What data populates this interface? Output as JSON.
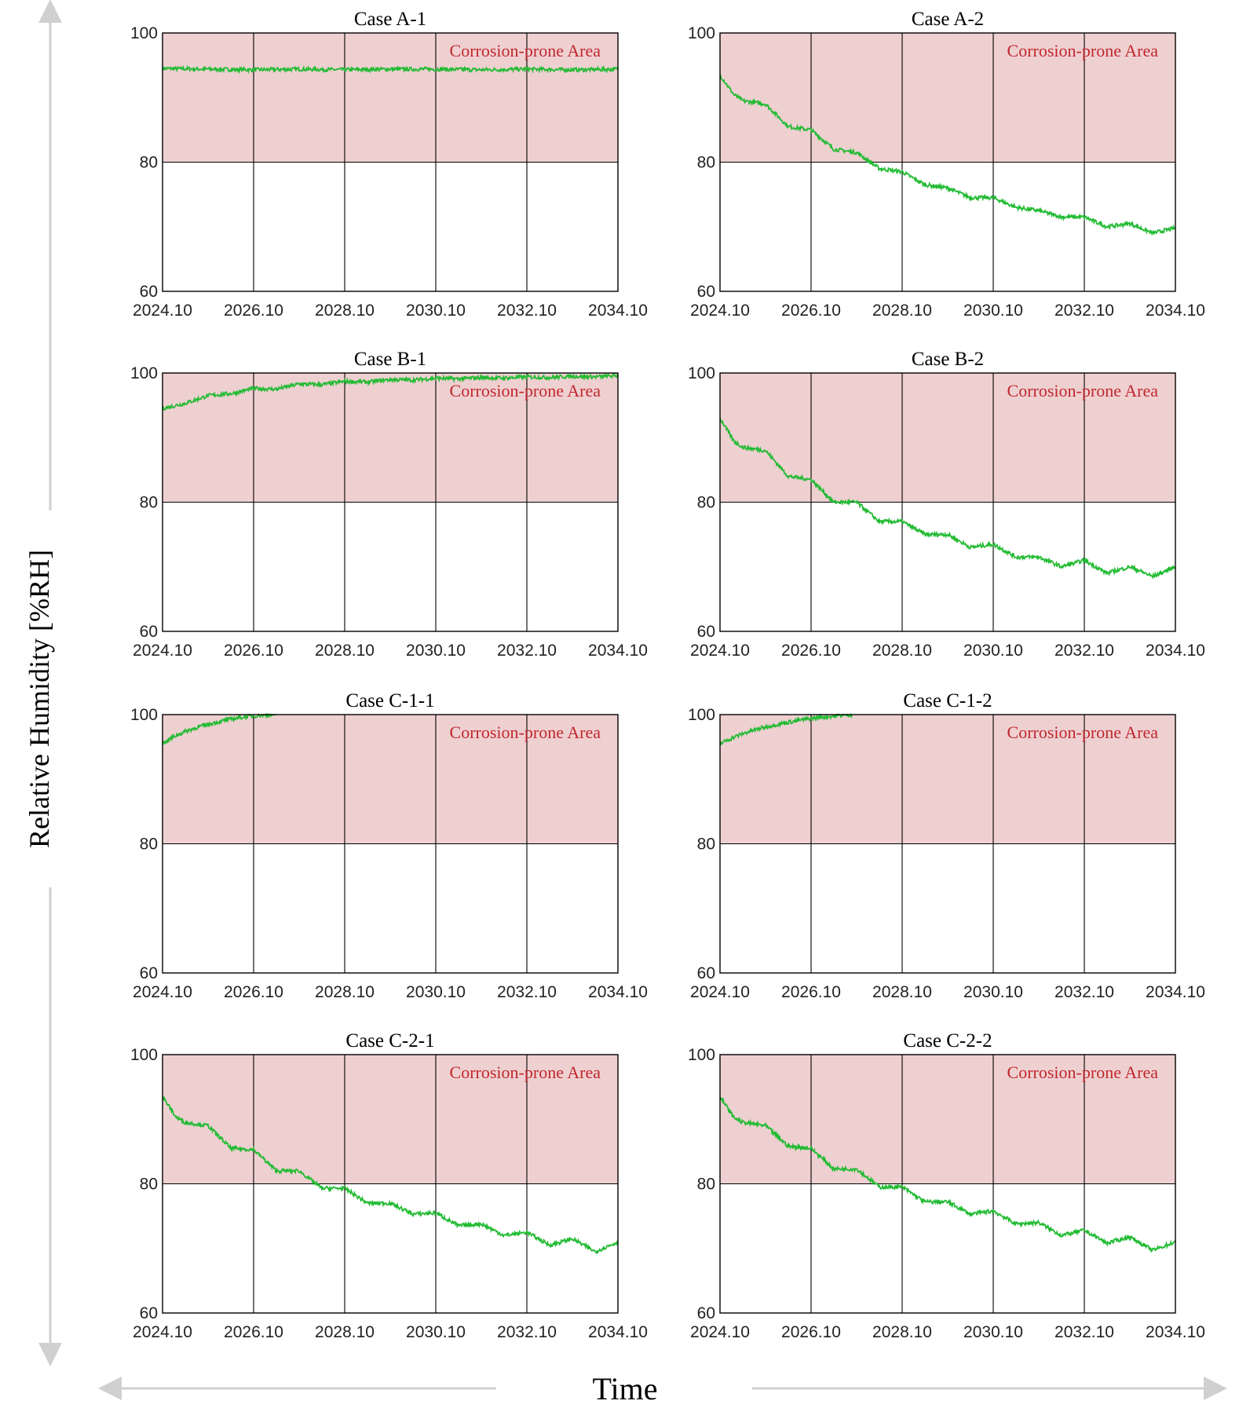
{
  "figure": {
    "ylabel": "Relative Humidity [%RH]",
    "xlabel": "Time",
    "arrow_color": "#d0d0d0"
  },
  "colors": {
    "zone_fill": "#efd0d1",
    "zone_text": "#c0272d",
    "line": "#22bb33",
    "grid": "#000000"
  },
  "chart_data": [
    {
      "type": "line",
      "title": "Case A-1",
      "zone_label": "Corrosion-prone Area",
      "zone": [
        80,
        100
      ],
      "ylim": [
        60,
        100
      ],
      "yticks": [
        60,
        80,
        100
      ],
      "xticks": [
        "2024.10",
        "2026.10",
        "2028.10",
        "2030.10",
        "2032.10",
        "2034.10"
      ],
      "x": [
        0,
        1,
        2,
        3,
        4,
        5,
        6,
        7,
        8,
        9,
        10
      ],
      "y": [
        94.5,
        94.4,
        94.3,
        94.4,
        94.3,
        94.4,
        94.4,
        94.3,
        94.4,
        94.3,
        94.4
      ]
    },
    {
      "type": "line",
      "title": "Case A-2",
      "zone_label": "Corrosion-prone Area",
      "zone": [
        80,
        100
      ],
      "ylim": [
        60,
        100
      ],
      "yticks": [
        60,
        80,
        100
      ],
      "xticks": [
        "2024.10",
        "2026.10",
        "2028.10",
        "2030.10",
        "2032.10",
        "2034.10"
      ],
      "x": [
        0,
        0.3,
        0.5,
        1,
        1.5,
        2,
        2.5,
        3,
        3.5,
        4,
        4.5,
        5,
        5.5,
        6,
        6.5,
        7,
        7.5,
        8,
        8.5,
        9,
        9.5,
        10
      ],
      "y": [
        93.5,
        90.5,
        89.5,
        89,
        85.5,
        85,
        82,
        81.5,
        79,
        78.5,
        76.5,
        76,
        74.5,
        74.5,
        73,
        72.5,
        71.5,
        71.5,
        70,
        70.5,
        69,
        69.8
      ]
    },
    {
      "type": "line",
      "title": "Case B-1",
      "zone_label": "Corrosion-prone Area",
      "zone": [
        80,
        100
      ],
      "ylim": [
        60,
        100
      ],
      "yticks": [
        60,
        80,
        100
      ],
      "xticks": [
        "2024.10",
        "2026.10",
        "2028.10",
        "2030.10",
        "2032.10",
        "2034.10"
      ],
      "x": [
        0,
        0.5,
        1,
        1.5,
        2,
        2.5,
        3,
        3.5,
        4,
        4.5,
        5,
        5.5,
        6,
        6.5,
        7,
        7.5,
        8,
        8.5,
        9,
        9.5,
        10
      ],
      "y": [
        94.5,
        95.3,
        96.5,
        96.8,
        97.6,
        97.5,
        98.3,
        98.2,
        98.7,
        98.6,
        99.0,
        98.9,
        99.2,
        99.1,
        99.3,
        99.2,
        99.4,
        99.3,
        99.5,
        99.4,
        99.6
      ]
    },
    {
      "type": "line",
      "title": "Case B-2",
      "zone_label": "Corrosion-prone Area",
      "zone": [
        80,
        100
      ],
      "ylim": [
        60,
        100
      ],
      "yticks": [
        60,
        80,
        100
      ],
      "xticks": [
        "2024.10",
        "2026.10",
        "2028.10",
        "2030.10",
        "2032.10",
        "2034.10"
      ],
      "x": [
        0,
        0.3,
        0.5,
        1,
        1.5,
        2,
        2.5,
        3,
        3.5,
        4,
        4.5,
        5,
        5.5,
        6,
        6.5,
        7,
        7.5,
        8,
        8.5,
        9,
        9.5,
        10
      ],
      "y": [
        93,
        89.5,
        88.5,
        88,
        84,
        83.5,
        80,
        80,
        77,
        77,
        75,
        75,
        73,
        73.5,
        71.5,
        71.5,
        70,
        71,
        69,
        70,
        68.5,
        70
      ]
    },
    {
      "type": "line",
      "title": "Case C-1-1",
      "zone_label": "Corrosion-prone Area",
      "zone": [
        80,
        100
      ],
      "ylim": [
        60,
        100
      ],
      "yticks": [
        60,
        80,
        100
      ],
      "xticks": [
        "2024.10",
        "2026.10",
        "2028.10",
        "2030.10",
        "2032.10",
        "2034.10"
      ],
      "x": [
        0,
        0.25,
        0.5,
        0.75,
        1,
        1.25,
        1.5,
        1.75,
        2,
        2.25,
        2.5
      ],
      "y": [
        95.5,
        96.6,
        97.4,
        98.0,
        98.5,
        98.9,
        99.3,
        99.6,
        99.8,
        99.95,
        100
      ]
    },
    {
      "type": "line",
      "title": "Case C-1-2",
      "zone_label": "Corrosion-prone Area",
      "zone": [
        80,
        100
      ],
      "ylim": [
        60,
        100
      ],
      "yticks": [
        60,
        80,
        100
      ],
      "xticks": [
        "2024.10",
        "2026.10",
        "2028.10",
        "2030.10",
        "2032.10",
        "2034.10"
      ],
      "x": [
        0,
        0.3,
        0.6,
        0.9,
        1.2,
        1.5,
        1.8,
        2.1,
        2.4,
        2.7,
        2.9
      ],
      "y": [
        95.5,
        96.5,
        97.3,
        97.9,
        98.4,
        98.8,
        99.2,
        99.5,
        99.7,
        99.9,
        100
      ]
    },
    {
      "type": "line",
      "title": "Case C-2-1",
      "zone_label": "Corrosion-prone Area",
      "zone": [
        80,
        100
      ],
      "ylim": [
        60,
        100
      ],
      "yticks": [
        60,
        80,
        100
      ],
      "xticks": [
        "2024.10",
        "2026.10",
        "2028.10",
        "2030.10",
        "2032.10",
        "2034.10"
      ],
      "x": [
        0,
        0.3,
        0.5,
        1,
        1.5,
        2,
        2.5,
        3,
        3.5,
        4,
        4.5,
        5,
        5.5,
        6,
        6.5,
        7,
        7.5,
        8,
        8.5,
        9,
        9.5,
        10
      ],
      "y": [
        93.5,
        90.3,
        89.5,
        89,
        85.5,
        85.3,
        82,
        82,
        79.3,
        79.3,
        77,
        77,
        75.3,
        75.5,
        73.5,
        73.8,
        72,
        72.5,
        70.5,
        71.5,
        69.5,
        71
      ]
    },
    {
      "type": "line",
      "title": "Case C-2-2",
      "zone_label": "Corrosion-prone Area",
      "zone": [
        80,
        100
      ],
      "ylim": [
        60,
        100
      ],
      "yticks": [
        60,
        80,
        100
      ],
      "xticks": [
        "2024.10",
        "2026.10",
        "2028.10",
        "2030.10",
        "2032.10",
        "2034.10"
      ],
      "x": [
        0,
        0.3,
        0.5,
        1,
        1.5,
        2,
        2.5,
        3,
        3.5,
        4,
        4.5,
        5,
        5.5,
        6,
        6.5,
        7,
        7.5,
        8,
        8.5,
        9,
        9.5,
        10
      ],
      "y": [
        93.5,
        90.3,
        89.5,
        89,
        85.8,
        85.5,
        82.3,
        82.3,
        79.5,
        79.5,
        77.2,
        77.2,
        75.3,
        75.8,
        73.8,
        74,
        72,
        72.8,
        70.8,
        71.8,
        69.7,
        71
      ]
    }
  ]
}
